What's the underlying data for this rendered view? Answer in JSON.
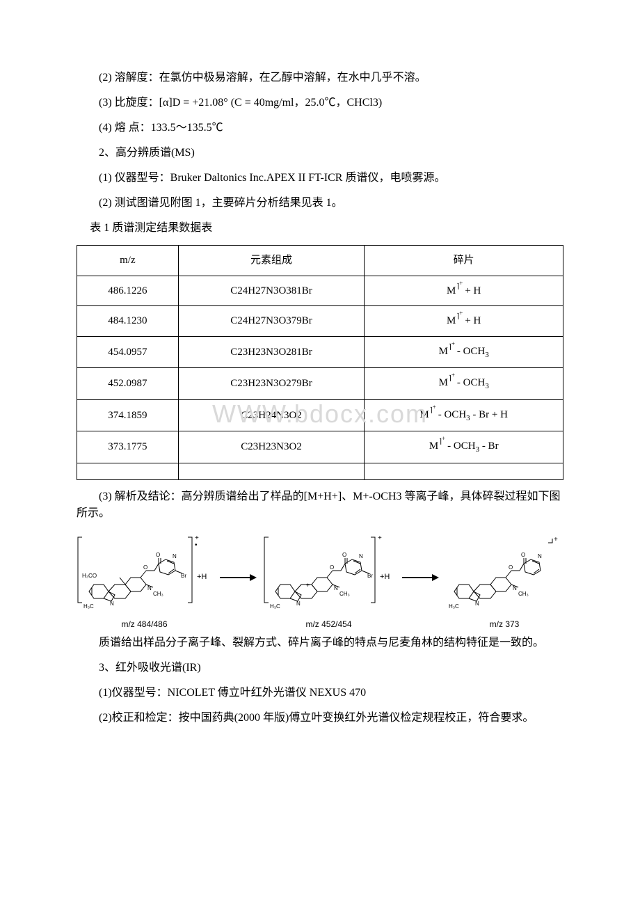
{
  "lines": {
    "l1": "(2) 溶解度：在氯仿中极易溶解，在乙醇中溶解，在水中几乎不溶。",
    "l2": "(3) 比旋度：[α]D = +21.08° (C = 40mg/ml，25.0℃，CHCl3)",
    "l3": "(4) 熔 点：133.5～135.5℃",
    "l4": "2、高分辨质谱(MS)",
    "l5": "(1) 仪器型号：Bruker Daltonics Inc.APEX II FT-ICR 质谱仪，电喷雾源。",
    "l6": "(2) 测试图谱见附图 1，主要碎片分析结果见表 1。",
    "table_caption": "表 1 质谱测定结果数据表",
    "l7": "(3) 解析及结论：高分辨质谱给出了样品的[M+H+]、M+-OCH3 等离子峰，具体碎裂过程如下图所示。",
    "l8": "质谱给出样品分子离子峰、裂解方式、碎片离子峰的特点与尼麦角林的结构特征是一致的。",
    "l9": "3、红外吸收光谱(IR)",
    "l10": "(1)仪器型号：NICOLET 傅立叶红外光谱仪 NEXUS 470",
    "l11": "(2)校正和检定：按中国药典(2000 年版)傅立叶变换红外光谱仪检定规程校正，符合要求。"
  },
  "table": {
    "headers": {
      "c1": "m/z",
      "c2": "元素组成",
      "c3": "碎片"
    },
    "rows": [
      {
        "mz": "486.1226",
        "comp": "C24H27N3O381Br",
        "frag_base": "M",
        "frag_plus": "+ H",
        "style": "sup"
      },
      {
        "mz": "484.1230",
        "comp": "C24H27N3O379Br",
        "frag_base": "M",
        "frag_plus": "+ H",
        "style": "sup"
      },
      {
        "mz": "454.0957",
        "comp": "C23H23N3O281Br",
        "frag_base": "M",
        "frag_plus": "- OCH",
        "sub3": "3",
        "style": "brk"
      },
      {
        "mz": "452.0987",
        "comp": "C23H23N3O279Br",
        "frag_base": "M",
        "frag_plus": "- OCH",
        "sub3": "3",
        "style": "brk"
      },
      {
        "mz": "374.1859",
        "comp": "C23H24N3O2",
        "frag_base": "M",
        "frag_plus": "- OCH",
        "sub3": "3",
        "tail": " - Br + H",
        "style": "brk"
      },
      {
        "mz": "373.1775",
        "comp": "C23H23N3O2",
        "frag_base": "M",
        "frag_plus": "- OCH",
        "sub3": "3",
        "tail": " - Br",
        "style": "brk"
      }
    ]
  },
  "diagram": {
    "mz1": "m/z  484/486",
    "mz2": "m/z  452/454",
    "mz3": "m/z  373",
    "plusH": "+H",
    "labels": {
      "h3co": "H₃CO",
      "h3c": "H₃C",
      "ch3": "CH₃",
      "n": "N",
      "o": "O",
      "br": "Br"
    },
    "colors": {
      "bond": "#000000",
      "text": "#000000",
      "arrow": "#000000"
    }
  },
  "watermark": "WWW.bdocx.com"
}
